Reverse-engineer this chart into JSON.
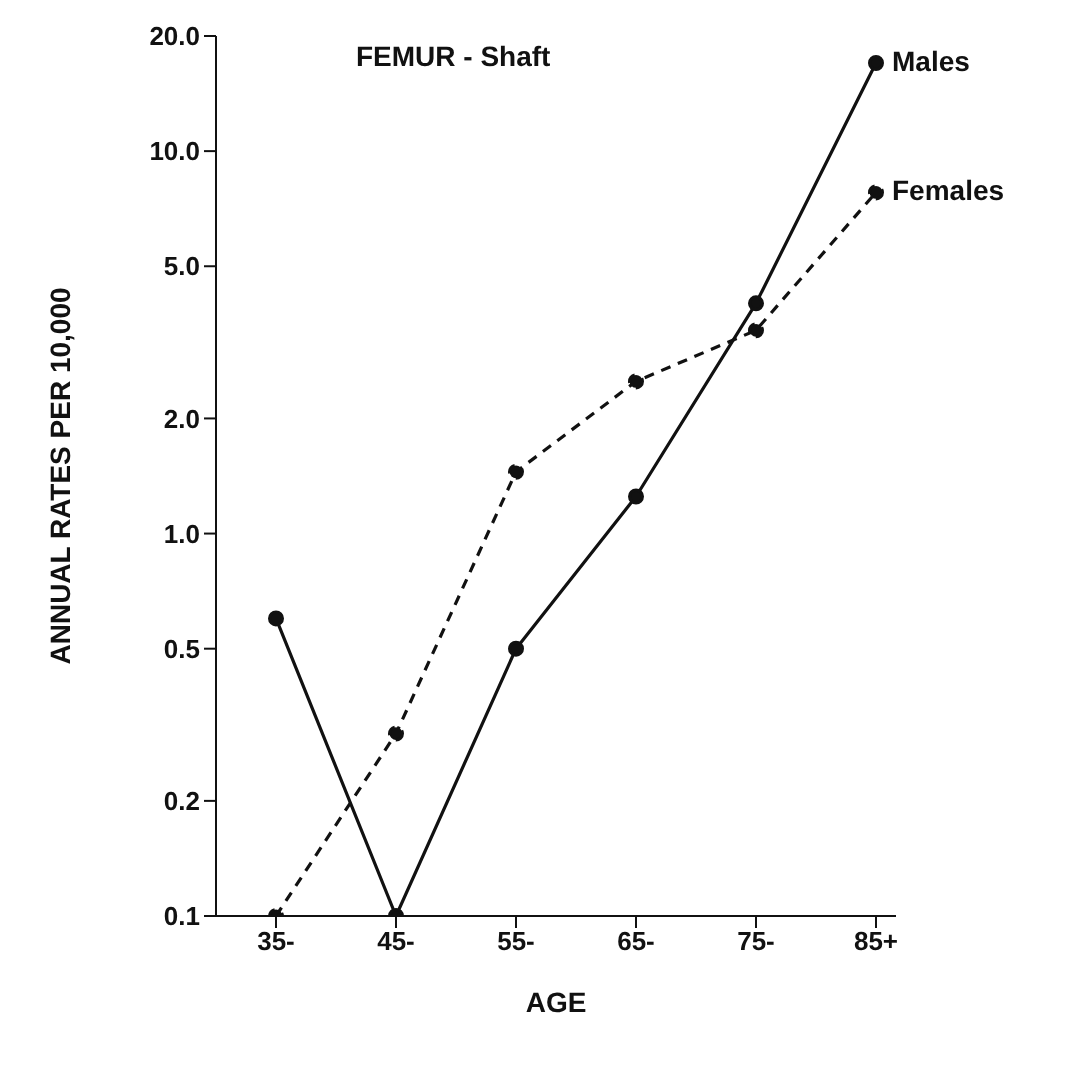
{
  "chart_data": {
    "type": "line",
    "title": "FEMUR - Shaft",
    "xlabel": "AGE",
    "ylabel": "ANNUAL RATES PER 10,000",
    "categories": [
      "35-",
      "45-",
      "55-",
      "65-",
      "75-",
      "85+"
    ],
    "series": [
      {
        "name": "Males",
        "color": "#111111",
        "line_style": "solid",
        "values": [
          0.6,
          0.1,
          0.5,
          1.25,
          4.0,
          17
        ]
      },
      {
        "name": "Females",
        "color": "#111111",
        "line_style": "dashed",
        "values": [
          0.1,
          0.3,
          1.45,
          2.5,
          3.4,
          7.8
        ]
      }
    ],
    "log": "y",
    "ylim": [
      0.1,
      20
    ],
    "yticks": [
      0.1,
      0.2,
      0.5,
      {
        "value": 1,
        "label": "1.0"
      },
      {
        "value": 2,
        "label": "2.0"
      },
      {
        "value": 5,
        "label": "5.0"
      },
      {
        "value": 10,
        "label": "10.0"
      },
      {
        "value": 20,
        "label": "20.0"
      }
    ],
    "grid": false,
    "legend": false,
    "marker": "circle"
  }
}
